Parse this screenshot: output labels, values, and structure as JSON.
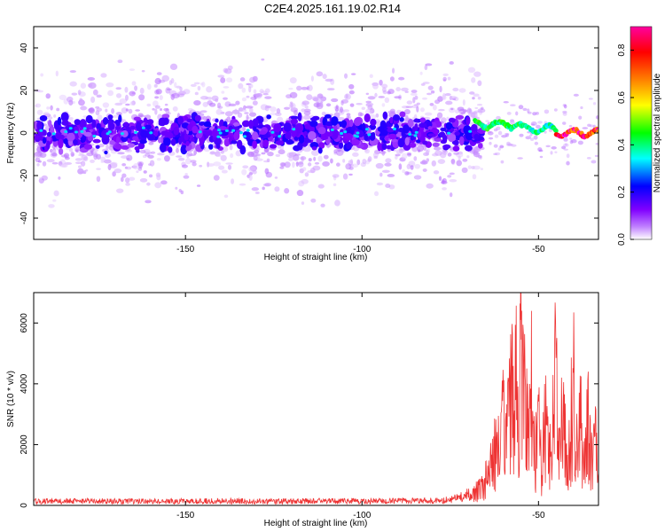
{
  "title": "C2E4.2025.161.19.02.R14",
  "chart_data": [
    {
      "type": "heatmap",
      "title": "C2E4.2025.161.19.02.R14",
      "xlabel": "Height of straight line (km)",
      "ylabel": "Frequency (Hz)",
      "xlim": [
        -193,
        -33
      ],
      "ylim": [
        -50,
        50
      ],
      "x_ticks": [
        -150,
        -100,
        -50
      ],
      "y_ticks": [
        -40,
        -20,
        0,
        20,
        40
      ],
      "colorbar": {
        "label": "Normalized spectral amplitude",
        "range": [
          0,
          0.9
        ],
        "ticks": [
          0.0,
          0.2,
          0.4,
          0.6,
          0.8
        ],
        "colormap": [
          "#ffffff",
          "#8000ff",
          "#0000ff",
          "#00ffff",
          "#00ff00",
          "#ffff00",
          "#ff8000",
          "#ff0000",
          "#ff00ff"
        ]
      },
      "features": [
        {
          "x_range": [
            -193,
            -68
          ],
          "freq_center": 0,
          "freq_halfwidth": 6,
          "amplitude": 0.12,
          "note": "broadband low-level band around 0 Hz with diffuse scatter up to +/-50 Hz"
        },
        {
          "x_range": [
            -68,
            -55
          ],
          "freq_center": 4,
          "freq_halfwidth": 3,
          "amplitude": 0.45
        },
        {
          "x_range": [
            -55,
            -45
          ],
          "freq_center": 2,
          "freq_halfwidth": 3,
          "amplitude": 0.4
        },
        {
          "x_range": [
            -45,
            -33
          ],
          "freq_center": 0,
          "freq_halfwidth": 2,
          "amplitude": 0.85
        }
      ]
    },
    {
      "type": "line",
      "xlabel": "Height of straight line (km)",
      "ylabel": "SNR (10 * v/v)",
      "xlim": [
        -193,
        -33
      ],
      "ylim": [
        0,
        7000
      ],
      "x_ticks": [
        -150,
        -100,
        -50
      ],
      "y_ticks": [
        0,
        2000,
        4000,
        6000
      ],
      "color": "#ee3333",
      "series": [
        {
          "x": [
            -193,
            -180,
            -170,
            -160,
            -150,
            -140,
            -130,
            -120,
            -110,
            -100,
            -90,
            -80,
            -75,
            -72,
            -70,
            -68,
            -66,
            -64,
            -62,
            -60,
            -58,
            -56,
            -55,
            -54,
            -53,
            -52,
            -51,
            -50,
            -49,
            -48,
            -47,
            -46,
            -45,
            -44,
            -43,
            -42,
            -41,
            -40,
            -39,
            -38,
            -37,
            -36,
            -35,
            -34,
            -33
          ],
          "y": [
            150,
            160,
            150,
            155,
            150,
            160,
            150,
            155,
            160,
            150,
            160,
            170,
            200,
            300,
            400,
            600,
            900,
            1500,
            2500,
            3500,
            4500,
            5500,
            6800,
            5000,
            3000,
            5000,
            2000,
            3500,
            1500,
            4000,
            2000,
            3000,
            6000,
            2500,
            4500,
            1800,
            3500,
            5500,
            2000,
            4000,
            1500,
            3500,
            2500,
            3000,
            2000
          ]
        }
      ]
    }
  ]
}
